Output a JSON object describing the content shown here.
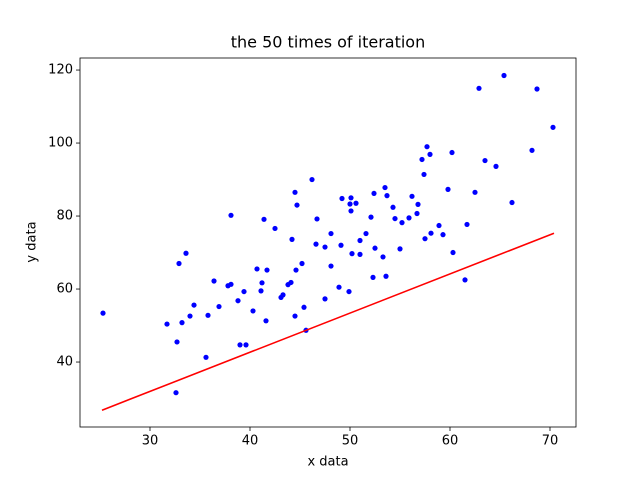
{
  "chart_data": {
    "type": "scatter",
    "title": "the 50 times of iteration",
    "xlabel": "x data",
    "ylabel": "y data",
    "xlim": [
      23,
      72.6
    ],
    "ylim": [
      22.2,
      123.3
    ],
    "xticks": [
      30,
      40,
      50,
      60,
      70
    ],
    "yticks": [
      40,
      60,
      80,
      100,
      120
    ],
    "series": [
      {
        "type": "scatter",
        "color": "#0000ff",
        "x": [
          25.3,
          31.7,
          32.7,
          32.6,
          32.9,
          33.2,
          33.6,
          34,
          34.4,
          35.6,
          35.8,
          36.4,
          36.9,
          37.8,
          38.1,
          38.1,
          38.8,
          39,
          39.4,
          39.6,
          40.3,
          40.7,
          41.1,
          41.2,
          41.4,
          41.6,
          41.7,
          42.5,
          43.1,
          43.3,
          43.8,
          44.1,
          44.2,
          44.5,
          44.5,
          44.6,
          44.7,
          45.2,
          45.4,
          45.6,
          46.2,
          46.6,
          46.7,
          47.5,
          47.5,
          48.1,
          48.1,
          48.9,
          49.1,
          49.2,
          49.9,
          50,
          50.1,
          50.1,
          50.2,
          50.6,
          51,
          51,
          51.6,
          52.1,
          52.3,
          52.4,
          52.5,
          53.3,
          53.5,
          53.6,
          53.7,
          54.3,
          54.5,
          55,
          55.2,
          55.9,
          56.2,
          56.8,
          56.7,
          57.2,
          57.4,
          57.5,
          57.7,
          58,
          58.1,
          58.9,
          59.3,
          59.8,
          60.2,
          60.3,
          61.5,
          61.7,
          62.5,
          62.9,
          63.5,
          64.6,
          65.4,
          66.2,
          68.2,
          68.7,
          70.3
        ],
        "values": [
          53.4,
          50.4,
          45.5,
          31.6,
          67,
          50.8,
          69.8,
          52.6,
          55.6,
          41.3,
          52.8,
          62.2,
          55.2,
          60.9,
          61.3,
          80.2,
          56.8,
          44.7,
          59.3,
          44.7,
          54,
          65.5,
          59.5,
          61.7,
          79.1,
          51.3,
          65.2,
          76.6,
          57.7,
          58.4,
          61.2,
          61.8,
          73.6,
          52.6,
          86.5,
          65.2,
          83,
          67,
          55,
          48.7,
          90,
          72.3,
          79.2,
          57.3,
          71.5,
          75.2,
          66.3,
          60.5,
          72,
          84.8,
          59.3,
          83.3,
          81.4,
          85,
          69.7,
          83.5,
          69.5,
          73.3,
          75.2,
          79.7,
          63.2,
          86.2,
          71.2,
          68.8,
          87.8,
          63.5,
          85.6,
          82.4,
          79.3,
          71,
          78.2,
          79.5,
          85.4,
          83.2,
          80.7,
          95.5,
          91.4,
          73.8,
          99,
          96.9,
          75.3,
          77.4,
          74.9,
          87.3,
          97.4,
          70,
          62.5,
          77.7,
          86.5,
          115,
          95.2,
          93.6,
          118.5,
          83.7,
          98,
          114.8,
          104.3
        ]
      },
      {
        "type": "line",
        "color": "#ff0000",
        "x": [
          25.2,
          70.4
        ],
        "values": [
          26.8,
          75.3
        ]
      }
    ]
  }
}
